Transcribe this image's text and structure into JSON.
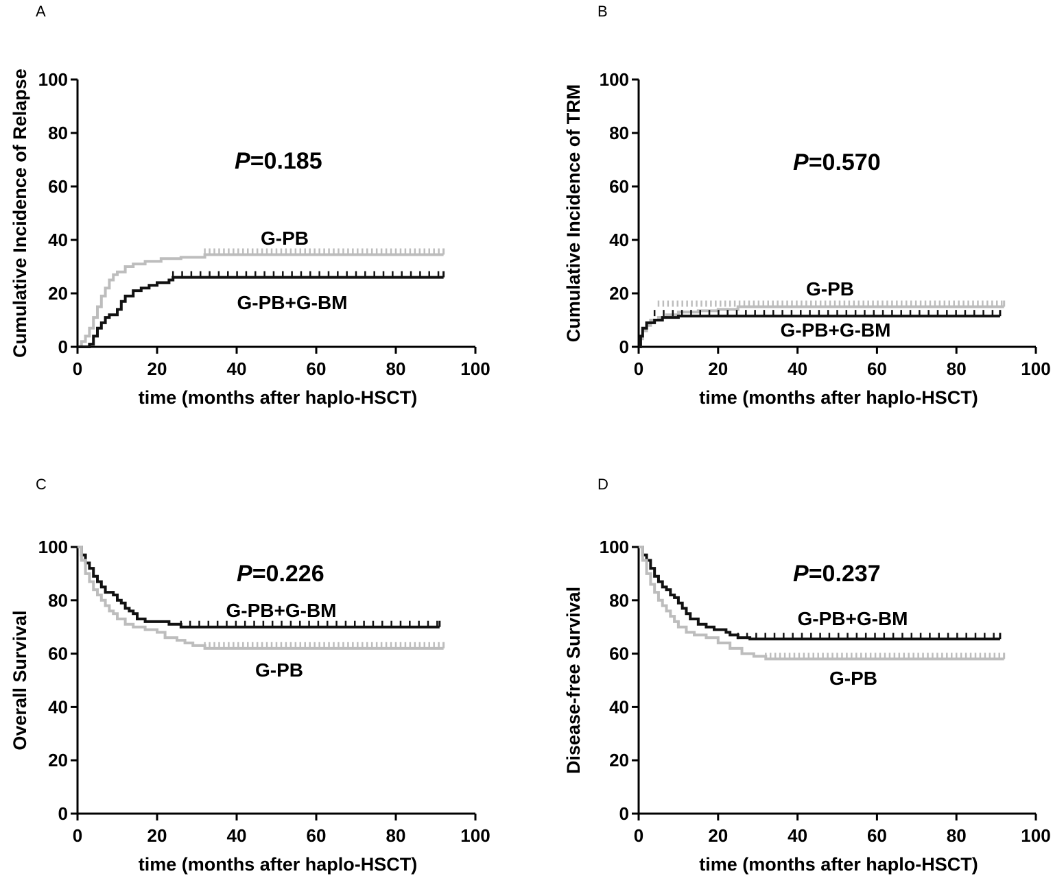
{
  "figure": {
    "colors": {
      "G-PB+G-BM": "#111111",
      "G-PB": "#bdbdbd"
    }
  },
  "chart_data": [
    {
      "panel": "A",
      "type": "line",
      "title": "",
      "xlabel": "time (months after haplo-HSCT)",
      "ylabel": "Cumulative Incidence of Relapse",
      "xlim": [
        0,
        100
      ],
      "ylim": [
        0,
        100
      ],
      "xticks": [
        "0",
        "20",
        "40",
        "60",
        "80",
        "100"
      ],
      "yticks": [
        "0",
        "20",
        "40",
        "60",
        "80",
        "100"
      ],
      "p_prefix": "P",
      "p_value": "=0.185",
      "series": [
        {
          "name": "G-PB",
          "color": "#bdbdbd",
          "points": [
            [
              0,
              0
            ],
            [
              1,
              2
            ],
            [
              2,
              4
            ],
            [
              3,
              7
            ],
            [
              4,
              11
            ],
            [
              5,
              15
            ],
            [
              6,
              19
            ],
            [
              7,
              22
            ],
            [
              8,
              25
            ],
            [
              9,
              27
            ],
            [
              10,
              28
            ],
            [
              12,
              30
            ],
            [
              14,
              31
            ],
            [
              17,
              32
            ],
            [
              21,
              33
            ],
            [
              26,
              33.5
            ],
            [
              32,
              34.5
            ],
            [
              92,
              34.5
            ]
          ],
          "censor_from": 32,
          "censor_step": 1.2
        },
        {
          "name": "G-PB+G-BM",
          "color": "#111111",
          "points": [
            [
              0,
              0
            ],
            [
              2,
              0
            ],
            [
              3,
              1
            ],
            [
              4,
              4
            ],
            [
              5,
              7
            ],
            [
              6,
              9
            ],
            [
              7,
              11
            ],
            [
              8,
              12
            ],
            [
              10,
              14
            ],
            [
              11,
              17
            ],
            [
              12,
              19
            ],
            [
              14,
              21
            ],
            [
              16,
              22
            ],
            [
              18,
              23
            ],
            [
              20,
              24
            ],
            [
              23,
              25
            ],
            [
              24,
              26
            ],
            [
              92,
              26
            ]
          ],
          "censor_from": 24,
          "censor_step": 2.3
        }
      ],
      "labels": [
        {
          "text": "G-PB",
          "series": "G-PB"
        },
        {
          "text": "G-PB+G-BM",
          "series": "G-PB+G-BM"
        }
      ]
    },
    {
      "panel": "B",
      "type": "line",
      "title": "",
      "xlabel": "time (months after haplo-HSCT)",
      "ylabel": "Cumulative Incidence of TRM",
      "xlim": [
        0,
        100
      ],
      "ylim": [
        0,
        100
      ],
      "xticks": [
        "0",
        "20",
        "40",
        "60",
        "80",
        "100"
      ],
      "yticks": [
        "0",
        "20",
        "40",
        "60",
        "80",
        "100"
      ],
      "p_prefix": "P",
      "p_value": "=0.570",
      "series": [
        {
          "name": "G-PB",
          "color": "#bdbdbd",
          "points": [
            [
              0,
              0
            ],
            [
              0.5,
              3
            ],
            [
              1,
              6
            ],
            [
              2,
              8
            ],
            [
              3,
              10
            ],
            [
              5,
              11
            ],
            [
              7,
              12
            ],
            [
              10,
              13
            ],
            [
              15,
              13.5
            ],
            [
              20,
              14
            ],
            [
              25,
              15
            ],
            [
              92,
              15
            ]
          ],
          "censor_from": 5,
          "censor_step": 1.2
        },
        {
          "name": "G-PB+G-BM",
          "color": "#111111",
          "points": [
            [
              0,
              0
            ],
            [
              0.5,
              4
            ],
            [
              1,
              7
            ],
            [
              2,
              9
            ],
            [
              4,
              10
            ],
            [
              6,
              11
            ],
            [
              10,
              11.5
            ],
            [
              12,
              11.5
            ],
            [
              91,
              11.5
            ]
          ],
          "censor_from": 4,
          "censor_step": 2.3
        }
      ],
      "labels": [
        {
          "text": "G-PB",
          "series": "G-PB"
        },
        {
          "text": "G-PB+G-BM",
          "series": "G-PB+G-BM"
        }
      ]
    },
    {
      "panel": "C",
      "type": "line",
      "title": "",
      "xlabel": "time (months after haplo-HSCT)",
      "ylabel": "Overall Survival",
      "xlim": [
        0,
        100
      ],
      "ylim": [
        0,
        100
      ],
      "xticks": [
        "0",
        "20",
        "40",
        "60",
        "80",
        "100"
      ],
      "yticks": [
        "0",
        "20",
        "40",
        "60",
        "80",
        "100"
      ],
      "p_prefix": "P",
      "p_value": "=0.226",
      "series": [
        {
          "name": "G-PB+G-BM",
          "color": "#111111",
          "points": [
            [
              0,
              100
            ],
            [
              1,
              97
            ],
            [
              2,
              94
            ],
            [
              3,
              92
            ],
            [
              4,
              89
            ],
            [
              5,
              87
            ],
            [
              6,
              85
            ],
            [
              7,
              83
            ],
            [
              9,
              82
            ],
            [
              10,
              80
            ],
            [
              11,
              79
            ],
            [
              12,
              77
            ],
            [
              13,
              76
            ],
            [
              14,
              75
            ],
            [
              15,
              73
            ],
            [
              17,
              72
            ],
            [
              22,
              72
            ],
            [
              23,
              71
            ],
            [
              26,
              70
            ],
            [
              91,
              70
            ]
          ],
          "censor_from": 26,
          "censor_step": 2.3
        },
        {
          "name": "G-PB",
          "color": "#bdbdbd",
          "points": [
            [
              0,
              100
            ],
            [
              1,
              95
            ],
            [
              2,
              90
            ],
            [
              3,
              87
            ],
            [
              4,
              84
            ],
            [
              5,
              82
            ],
            [
              6,
              80
            ],
            [
              7,
              78
            ],
            [
              8,
              76
            ],
            [
              9,
              75
            ],
            [
              10,
              73
            ],
            [
              12,
              71
            ],
            [
              14,
              70
            ],
            [
              17,
              69
            ],
            [
              20,
              68
            ],
            [
              22,
              66
            ],
            [
              25,
              65
            ],
            [
              27,
              64
            ],
            [
              29,
              63
            ],
            [
              32,
              62
            ],
            [
              92,
              62
            ]
          ],
          "censor_from": 32,
          "censor_step": 1.2
        }
      ],
      "labels": [
        {
          "text": "G-PB+G-BM",
          "series": "G-PB+G-BM"
        },
        {
          "text": "G-PB",
          "series": "G-PB"
        }
      ]
    },
    {
      "panel": "D",
      "type": "line",
      "title": "",
      "xlabel": "time (months after haplo-HSCT)",
      "ylabel": "Disease-free Survival",
      "xlim": [
        0,
        100
      ],
      "ylim": [
        0,
        100
      ],
      "xticks": [
        "0",
        "20",
        "40",
        "60",
        "80",
        "100"
      ],
      "yticks": [
        "0",
        "20",
        "40",
        "60",
        "80",
        "100"
      ],
      "p_prefix": "P",
      "p_value": "=0.237",
      "series": [
        {
          "name": "G-PB+G-BM",
          "color": "#111111",
          "points": [
            [
              0,
              100
            ],
            [
              1,
              97
            ],
            [
              2,
              95
            ],
            [
              3,
              92
            ],
            [
              4,
              89
            ],
            [
              5,
              87
            ],
            [
              6,
              85
            ],
            [
              7,
              84
            ],
            [
              8,
              82
            ],
            [
              9,
              81
            ],
            [
              10,
              79
            ],
            [
              11,
              77
            ],
            [
              12,
              75
            ],
            [
              13,
              73
            ],
            [
              15,
              71
            ],
            [
              17,
              70
            ],
            [
              19,
              69
            ],
            [
              22,
              68
            ],
            [
              23,
              67
            ],
            [
              25,
              66
            ],
            [
              28,
              65.5
            ],
            [
              91,
              65.5
            ]
          ],
          "censor_from": 25,
          "censor_step": 2.3
        },
        {
          "name": "G-PB",
          "color": "#bdbdbd",
          "points": [
            [
              0,
              100
            ],
            [
              1,
              95
            ],
            [
              2,
              90
            ],
            [
              3,
              86
            ],
            [
              4,
              83
            ],
            [
              5,
              80
            ],
            [
              6,
              78
            ],
            [
              7,
              76
            ],
            [
              8,
              74
            ],
            [
              9,
              72
            ],
            [
              10,
              70
            ],
            [
              12,
              68
            ],
            [
              14,
              67
            ],
            [
              17,
              66
            ],
            [
              20,
              64
            ],
            [
              23,
              62
            ],
            [
              26,
              60
            ],
            [
              29,
              59
            ],
            [
              32,
              58
            ],
            [
              92,
              58
            ]
          ],
          "censor_from": 32,
          "censor_step": 1.2
        }
      ],
      "labels": [
        {
          "text": "G-PB+G-BM",
          "series": "G-PB+G-BM"
        },
        {
          "text": "G-PB",
          "series": "G-PB"
        }
      ]
    }
  ]
}
